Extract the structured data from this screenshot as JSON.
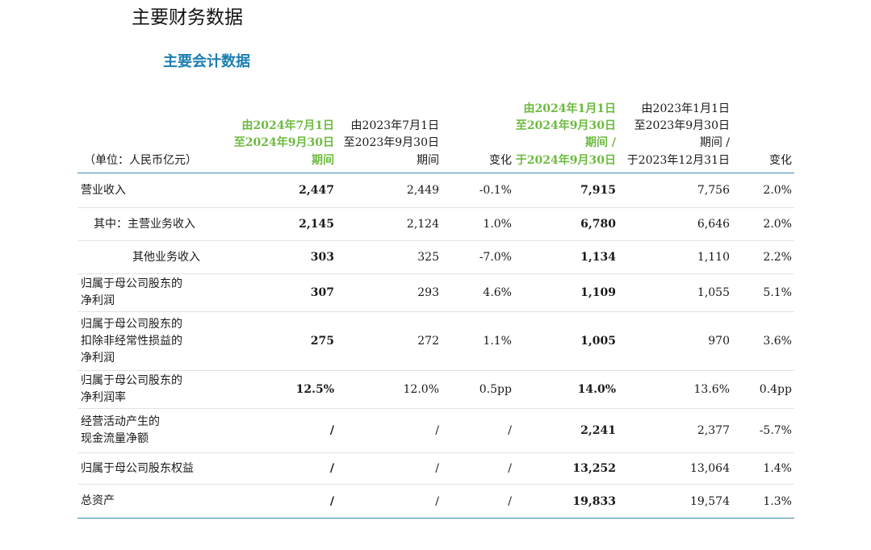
{
  "page_title": "主要财务数据",
  "section_title": "主要会计数据",
  "header": {
    "unit": "（单位：人民币亿元）",
    "col1": "由2024年7月1日\n至2024年9月30日\n期间",
    "col2": "由2023年7月1日\n至2023年9月30日\n期间",
    "col3": "变化",
    "col4": "由2024年1月1日\n至2024年9月30日\n期间 /\n于2024年9月30日",
    "col5": "由2023年1月1日\n至2023年9月30日\n期间 /\n于2023年12月31日",
    "col6": "变化"
  },
  "rows": [
    {
      "label": "营业收入",
      "q3_2024": "2,447",
      "q3_2023": "2,449",
      "q_change": "-0.1%",
      "ytd_2024": "7,915",
      "ytd_2023": "7,756",
      "ytd_change": "2.0%"
    },
    {
      "label": "其中：主营业务收入",
      "q3_2024": "2,145",
      "q3_2023": "2,124",
      "q_change": "1.0%",
      "ytd_2024": "6,780",
      "ytd_2023": "6,646",
      "ytd_change": "2.0%"
    },
    {
      "label": "其他业务收入",
      "q3_2024": "303",
      "q3_2023": "325",
      "q_change": "-7.0%",
      "ytd_2024": "1,134",
      "ytd_2023": "1,110",
      "ytd_change": "2.2%"
    },
    {
      "label": "归属于母公司股东的\n净利润",
      "q3_2024": "307",
      "q3_2023": "293",
      "q_change": "4.6%",
      "ytd_2024": "1,109",
      "ytd_2023": "1,055",
      "ytd_change": "5.1%"
    },
    {
      "label": "归属于母公司股东的\n扣除非经常性损益的\n净利润",
      "q3_2024": "275",
      "q3_2023": "272",
      "q_change": "1.1%",
      "ytd_2024": "1,005",
      "ytd_2023": "970",
      "ytd_change": "3.6%"
    },
    {
      "label": "归属于母公司股东的\n净利润率",
      "q3_2024": "12.5%",
      "q3_2023": "12.0%",
      "q_change": "0.5pp",
      "ytd_2024": "14.0%",
      "ytd_2023": "13.6%",
      "ytd_change": "0.4pp"
    },
    {
      "label": "经营活动产生的\n现金流量净额",
      "q3_2024": "/",
      "q3_2023": "/",
      "q_change": "/",
      "ytd_2024": "2,241",
      "ytd_2023": "2,377",
      "ytd_change": "-5.7%"
    },
    {
      "label": "归属于母公司股东权益",
      "q3_2024": "/",
      "q3_2023": "/",
      "q_change": "/",
      "ytd_2024": "13,252",
      "ytd_2023": "13,064",
      "ytd_change": "1.4%"
    },
    {
      "label": "总资产",
      "q3_2024": "/",
      "q3_2023": "/",
      "q_change": "/",
      "ytd_2024": "19,833",
      "ytd_2023": "19,574",
      "ytd_change": "1.3%"
    }
  ],
  "colors": {
    "highlight_green": "#6dbb3f",
    "section_blue": "#1c7fb2",
    "rule_blue": "#3a8bb5"
  }
}
